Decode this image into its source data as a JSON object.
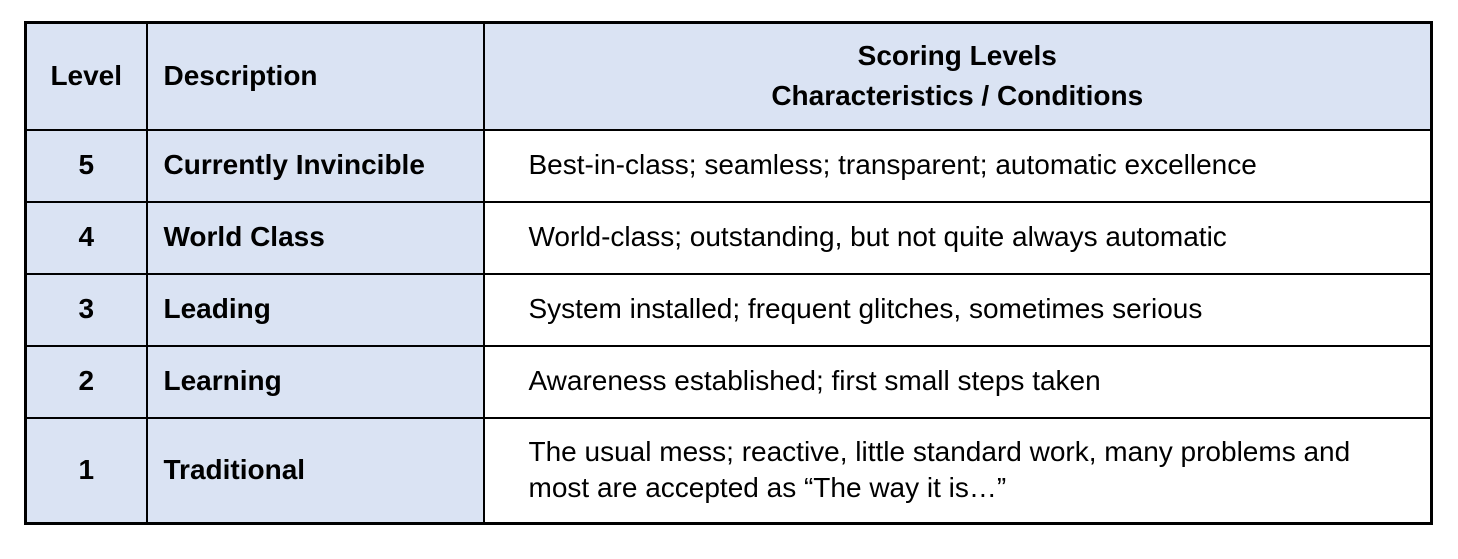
{
  "table": {
    "title_semantic": "scoring-levels-table",
    "colors": {
      "header_and_left_bg": "#dae3f3",
      "characteristics_bg": "#ffffff",
      "border": "#000000",
      "text": "#000000",
      "page_bg": "#ffffff"
    },
    "headers": {
      "level": "Level",
      "description": "Description",
      "scoring_line1": "Scoring Levels",
      "scoring_line2": "Characteristics / Conditions"
    },
    "rows": [
      {
        "level": "5",
        "description": "Currently Invincible",
        "characteristics": "Best-in-class; seamless; transparent; automatic excellence"
      },
      {
        "level": "4",
        "description": "World Class",
        "characteristics": "World-class; outstanding, but not quite always automatic"
      },
      {
        "level": "3",
        "description": "Leading",
        "characteristics": "System installed; frequent glitches, sometimes serious"
      },
      {
        "level": "2",
        "description": "Learning",
        "characteristics": "Awareness established; first small steps taken"
      },
      {
        "level": "1",
        "description": "Traditional",
        "characteristics": "The usual mess; reactive, little standard work, many problems and most are accepted as “The way it is…”"
      }
    ]
  },
  "chart_data": {
    "type": "table",
    "title": "Scoring Levels",
    "columns": [
      "Level",
      "Description",
      "Scoring Levels Characteristics / Conditions"
    ],
    "rows": [
      [
        "5",
        "Currently Invincible",
        "Best-in-class; seamless; transparent; automatic excellence"
      ],
      [
        "4",
        "World Class",
        "World-class; outstanding, but not quite always automatic"
      ],
      [
        "3",
        "Leading",
        "System installed; frequent glitches, sometimes serious"
      ],
      [
        "2",
        "Learning",
        "Awareness established; first small steps taken"
      ],
      [
        "1",
        "Traditional",
        "The usual mess; reactive, little standard work, many problems and most are accepted as “The way it is…”"
      ]
    ]
  }
}
